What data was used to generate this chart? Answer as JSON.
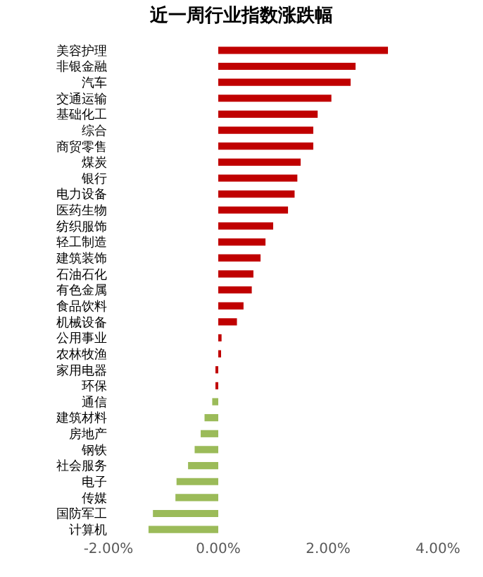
{
  "chart_data": {
    "type": "bar",
    "orientation": "horizontal",
    "title": "近一周行业指数涨跌幅",
    "categories": [
      "美容护理",
      "非银金融",
      "汽车",
      "交通运输",
      "基础化工",
      "综合",
      "商贸零售",
      "煤炭",
      "银行",
      "电力设备",
      "医药生物",
      "纺织服饰",
      "轻工制造",
      "建筑装饰",
      "石油石化",
      "有色金属",
      "食品饮料",
      "机械设备",
      "公用事业",
      "农林牧渔",
      "家用电器",
      "环保",
      "通信",
      "建筑材料",
      "房地产",
      "钢铁",
      "社会服务",
      "电子",
      "传媒",
      "国防军工",
      "计算机"
    ],
    "values": [
      3.09,
      2.5,
      2.41,
      2.06,
      1.81,
      1.73,
      1.73,
      1.5,
      1.44,
      1.39,
      1.27,
      1.0,
      0.86,
      0.77,
      0.64,
      0.61,
      0.46,
      0.34,
      0.06,
      0.05,
      -0.03,
      -0.03,
      -0.11,
      -0.25,
      -0.32,
      -0.43,
      -0.55,
      -0.76,
      -0.78,
      -1.19,
      -1.27
    ],
    "colors": [
      "#c00000",
      "#c00000",
      "#c00000",
      "#c00000",
      "#c00000",
      "#c00000",
      "#c00000",
      "#c00000",
      "#c00000",
      "#c00000",
      "#c00000",
      "#c00000",
      "#c00000",
      "#c00000",
      "#c00000",
      "#c00000",
      "#c00000",
      "#c00000",
      "#c00000",
      "#c00000",
      "#c00000",
      "#c00000",
      "#9bbb59",
      "#9bbb59",
      "#9bbb59",
      "#9bbb59",
      "#9bbb59",
      "#9bbb59",
      "#9bbb59",
      "#9bbb59",
      "#9bbb59"
    ],
    "xlim": [
      -2,
      4
    ],
    "xticks": [
      {
        "value": -2,
        "label": "-2.00%"
      },
      {
        "value": 0,
        "label": "0.00%"
      },
      {
        "value": 2,
        "label": "2.00%"
      },
      {
        "value": 4,
        "label": "4.00%"
      }
    ],
    "grid": false
  }
}
